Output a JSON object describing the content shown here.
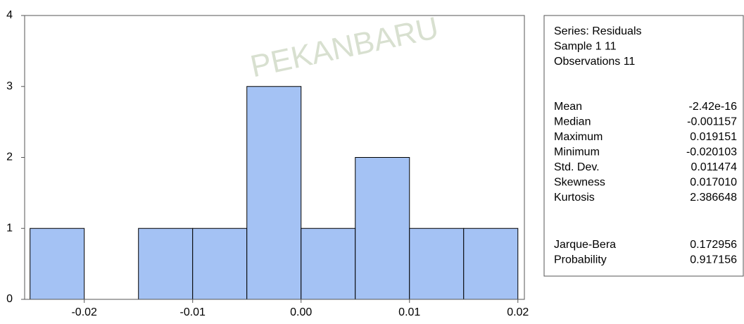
{
  "chart_data": {
    "type": "histogram",
    "watermark": "PEKANBARU",
    "bins": [
      -0.025,
      -0.02,
      -0.015,
      -0.01,
      -0.005,
      0.0,
      0.005,
      0.01,
      0.015,
      0.02
    ],
    "values": [
      1,
      0,
      1,
      1,
      3,
      1,
      2,
      1,
      1
    ],
    "color": "#a4c2f4",
    "xlim": [
      -0.0255,
      0.0206
    ],
    "xticks": [
      -0.02,
      -0.01,
      {
        "value": 0,
        "label": "0.00"
      },
      0.01,
      0.02
    ],
    "ylim": [
      0,
      4
    ],
    "yticks": [
      0,
      1,
      2,
      3,
      4
    ],
    "stats": {
      "header": [
        "Series: Residuals",
        "Sample 1 11",
        "Observations 11"
      ],
      "rows": [
        [
          "Mean",
          "-2.42e-16"
        ],
        [
          "Median",
          "-0.001157"
        ],
        [
          "Maximum",
          "0.019151"
        ],
        [
          "Minimum",
          "-0.020103"
        ],
        [
          "Std. Dev.",
          "0.011474"
        ],
        [
          "Skewness",
          "0.017010"
        ],
        [
          "Kurtosis",
          "2.386648"
        ]
      ],
      "test_rows": [
        [
          "Jarque-Bera",
          "0.172956"
        ],
        [
          "Probability",
          "0.917156"
        ]
      ]
    }
  }
}
